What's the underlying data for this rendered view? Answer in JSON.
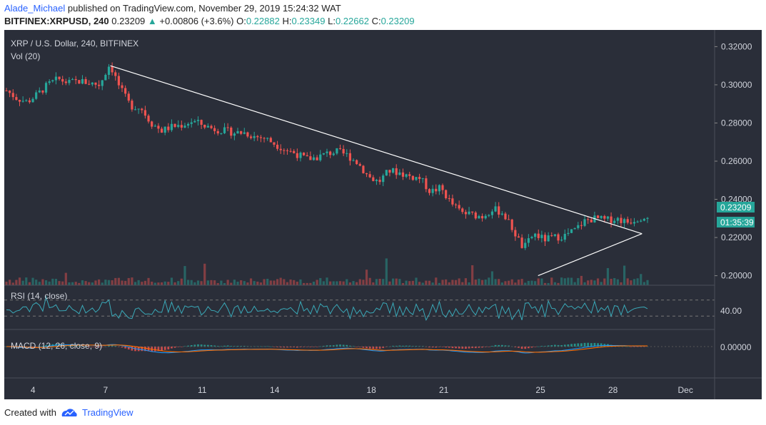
{
  "header": {
    "user": "Alade_Michael",
    "published_text": "published on TradingView.com, November 29, 2019 15:24:32 WAT",
    "symbol_line": "BITFINEX:XRPUSD, 240",
    "last": "0.23209",
    "change": "+0.00806 (+3.6%)",
    "o_label": "O:",
    "o": "0.22882",
    "h_label": "H:",
    "h": "0.23349",
    "l_label": "L:",
    "l": "0.22662",
    "c_label": "C:",
    "c": "0.23209"
  },
  "panes": {
    "main_title": "XRP / U.S. Dollar, 240, BITFINEX",
    "vol_label": "Vol (20)",
    "rsi_label": "RSI (14, close)",
    "macd_label": "MACD (12, 26, close, 9)"
  },
  "footer": {
    "created_with": "Created with",
    "brand": "TradingView"
  },
  "colors": {
    "up": "#26a69a",
    "down": "#ef5350",
    "bg": "#2a2e39",
    "rsi": "#3aa9b8",
    "macd": "#2196f3",
    "signal": "#ff6d00"
  },
  "chart_data": {
    "type": "candlestick",
    "title": "XRP / U.S. Dollar, 240, BITFINEX",
    "x_ticks": [
      "4",
      "7",
      "11",
      "14",
      "18",
      "21",
      "25",
      "28",
      "Dec"
    ],
    "y_ticks": [
      "0.32000",
      "0.30000",
      "0.28000",
      "0.26000",
      "0.24000",
      "0.22000",
      "0.20000"
    ],
    "ylim": [
      0.195,
      0.325
    ],
    "price_label": "0.23209",
    "countdown_label": "01:35:39",
    "close_path": [
      0.297,
      0.293,
      0.291,
      0.295,
      0.3,
      0.303,
      0.301,
      0.302,
      0.301,
      0.3,
      0.311,
      0.298,
      0.289,
      0.288,
      0.28,
      0.276,
      0.278,
      0.279,
      0.281,
      0.279,
      0.277,
      0.276,
      0.275,
      0.275,
      0.273,
      0.272,
      0.269,
      0.266,
      0.264,
      0.261,
      0.262,
      0.264,
      0.265,
      0.263,
      0.259,
      0.252,
      0.249,
      0.255,
      0.254,
      0.252,
      0.251,
      0.244,
      0.246,
      0.238,
      0.233,
      0.232,
      0.231,
      0.235,
      0.233,
      0.224,
      0.214,
      0.222,
      0.219,
      0.22,
      0.221,
      0.224,
      0.229,
      0.23,
      0.229,
      0.23,
      0.228,
      0.23,
      0.232
    ],
    "trendline_desc": [
      [
        0.31,
        7.2
      ],
      [
        0.222,
        29.2
      ]
    ],
    "trendline_asc": [
      [
        0.2,
        24.9
      ],
      [
        0.222,
        29.2
      ]
    ],
    "rsi": {
      "levels": [
        "40.00"
      ]
    },
    "macd": {
      "levels": [
        "0.00000"
      ]
    }
  }
}
